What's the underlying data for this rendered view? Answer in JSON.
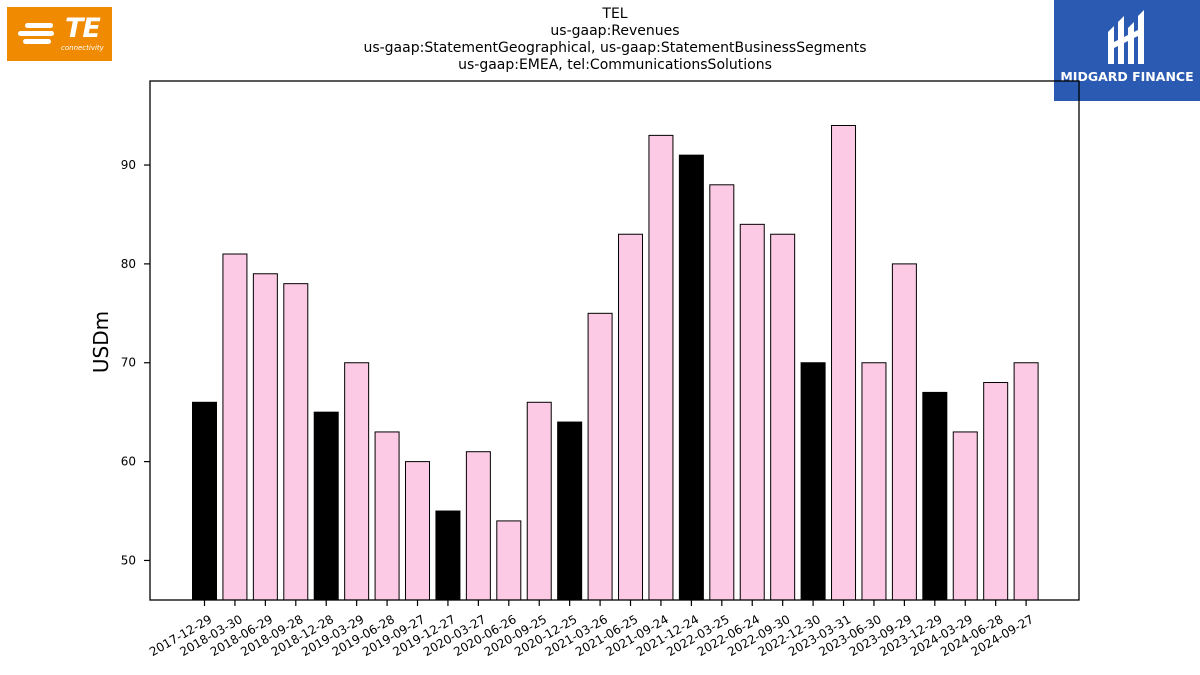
{
  "header": {
    "title_lines": [
      "TEL",
      "us-gaap:Revenues",
      "us-gaap:StatementGeographical, us-gaap:StatementBusinessSegments",
      "us-gaap:EMEA, tel:CommunicationsSolutions"
    ]
  },
  "logos": {
    "left": {
      "text": "TE",
      "subtext": "connectivity",
      "color": "#f08a00"
    },
    "right": {
      "text": "MIDGARD FINANCE",
      "color": "#2a5ab2"
    }
  },
  "chart_data": {
    "type": "bar",
    "title": "TEL\nus-gaap:Revenues\nus-gaap:StatementGeographical, us-gaap:StatementBusinessSegments\nus-gaap:EMEA, tel:CommunicationsSolutions",
    "xlabel": "",
    "ylabel": "USDm",
    "ylim": [
      46,
      98.5
    ],
    "yticks": [
      50,
      60,
      70,
      80,
      90
    ],
    "grid": false,
    "colors": {
      "quarter": "#fccae4",
      "fiscal_year_end": "#000000",
      "edge": "#000000"
    },
    "categories": [
      "2017-12-29",
      "2018-03-30",
      "2018-06-29",
      "2018-09-28",
      "2018-12-28",
      "2019-03-29",
      "2019-06-28",
      "2019-09-27",
      "2019-12-27",
      "2020-03-27",
      "2020-06-26",
      "2020-09-25",
      "2020-12-25",
      "2021-03-26",
      "2021-06-25",
      "2021-09-24",
      "2021-12-24",
      "2022-03-25",
      "2022-06-24",
      "2022-09-30",
      "2022-12-30",
      "2023-03-31",
      "2023-06-30",
      "2023-09-29",
      "2023-12-29",
      "2024-03-29",
      "2024-06-28",
      "2024-09-27"
    ],
    "values": [
      66,
      81,
      79,
      78,
      65,
      70,
      63,
      60,
      55,
      61,
      54,
      66,
      64,
      75,
      83,
      93,
      91,
      88,
      84,
      83,
      70,
      94,
      70,
      80,
      67,
      63,
      68,
      70
    ],
    "highlight": [
      true,
      false,
      false,
      false,
      true,
      false,
      false,
      false,
      true,
      false,
      false,
      false,
      true,
      false,
      false,
      false,
      true,
      false,
      false,
      false,
      true,
      false,
      false,
      false,
      true,
      false,
      false,
      false
    ]
  }
}
